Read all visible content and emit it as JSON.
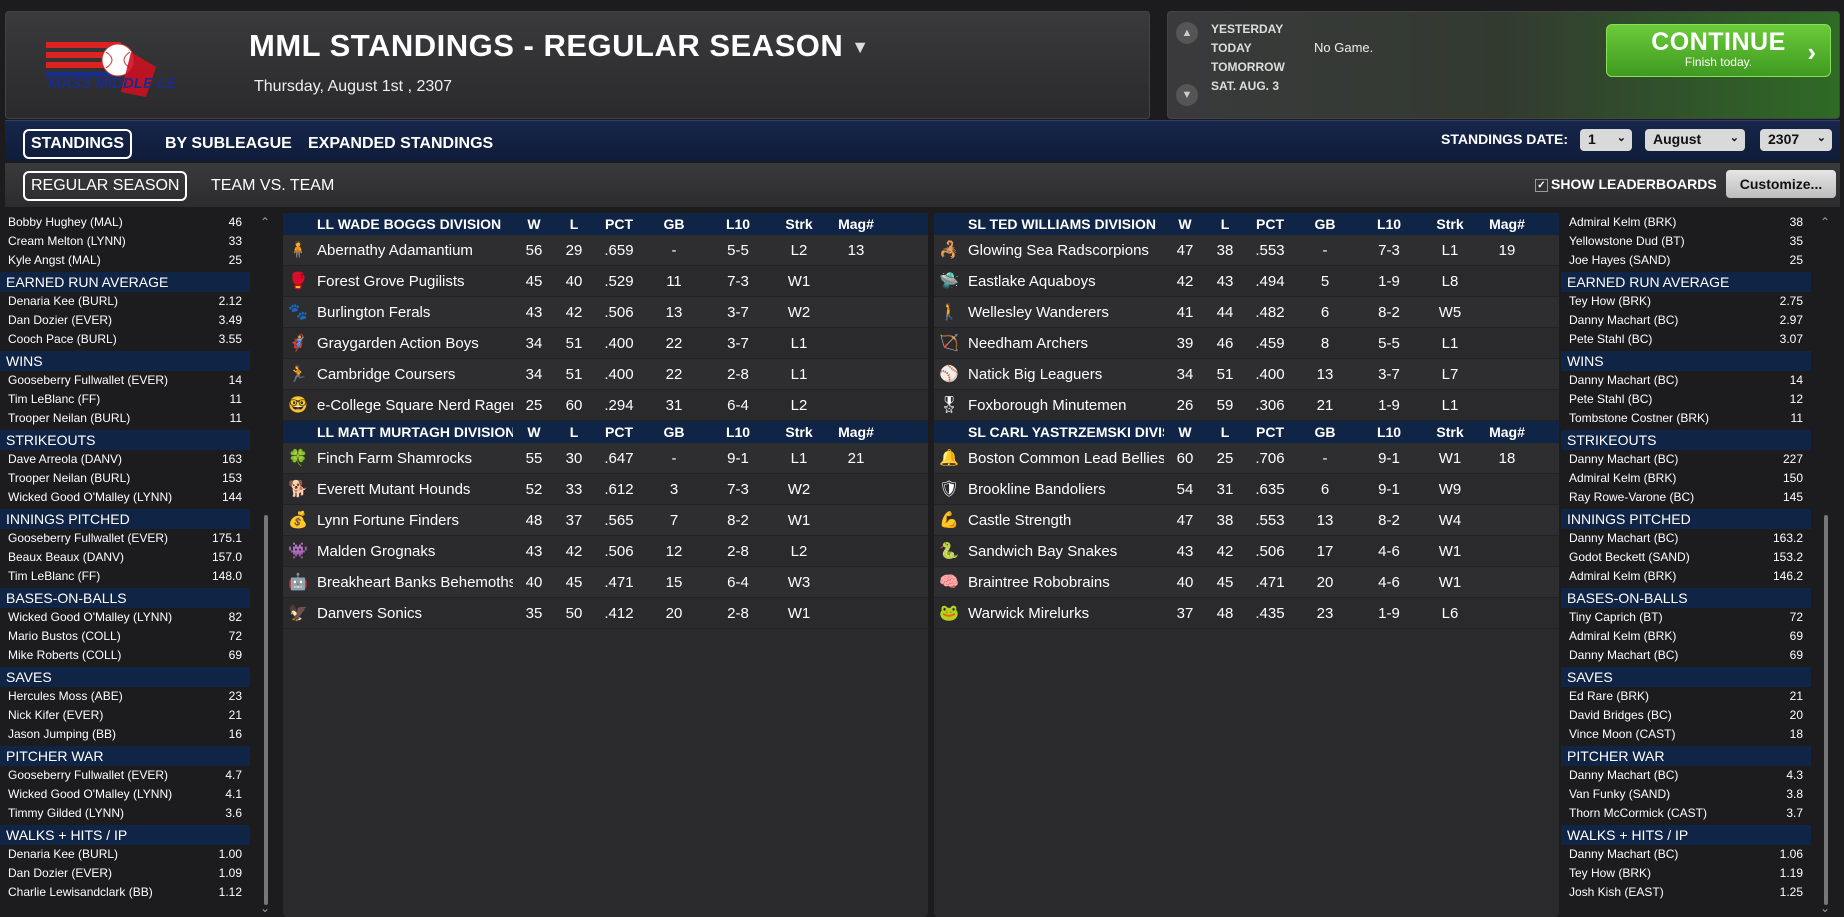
{
  "header": {
    "title": "MML STANDINGS - REGULAR SEASON",
    "date": "Thursday, August 1st , 2307",
    "logo_text": "MASS MIDDLE LEAGUE"
  },
  "date_nav": {
    "yesterday": "YESTERDAY",
    "today": "TODAY",
    "tomorrow": "TOMORROW",
    "next": "SAT. AUG. 3",
    "status": "No Game.",
    "continue_label": "CONTINUE",
    "continue_sub": "Finish today."
  },
  "tabs": {
    "primary": [
      "STANDINGS",
      "BY SUBLEAGUE",
      "EXPANDED STANDINGS"
    ],
    "secondary": [
      "REGULAR SEASON",
      "TEAM VS. TEAM"
    ],
    "standings_date_label": "STANDINGS DATE:",
    "day": "1",
    "month": "August",
    "year": "2307",
    "show_leaderboards": "SHOW LEADERBOARDS",
    "customize": "Customize..."
  },
  "columns": [
    "W",
    "L",
    "PCT",
    "GB",
    "L10",
    "Strk",
    "Mag#"
  ],
  "left_divisions": [
    {
      "name": "LL WADE BOGGS DIVISION",
      "teams": [
        {
          "icon": "🧍",
          "name": "Abernathy Adamantium",
          "w": "56",
          "l": "29",
          "pct": ".659",
          "gb": "-",
          "l10": "5-5",
          "strk": "L2",
          "mag": "13"
        },
        {
          "icon": "🥊",
          "name": "Forest Grove Pugilists",
          "w": "45",
          "l": "40",
          "pct": ".529",
          "gb": "11",
          "l10": "7-3",
          "strk": "W1",
          "mag": ""
        },
        {
          "icon": "🐾",
          "name": "Burlington Ferals",
          "w": "43",
          "l": "42",
          "pct": ".506",
          "gb": "13",
          "l10": "3-7",
          "strk": "W2",
          "mag": ""
        },
        {
          "icon": "🦸",
          "name": "Graygarden Action Boys",
          "w": "34",
          "l": "51",
          "pct": ".400",
          "gb": "22",
          "l10": "3-7",
          "strk": "L1",
          "mag": ""
        },
        {
          "icon": "🏃",
          "name": "Cambridge Coursers",
          "w": "34",
          "l": "51",
          "pct": ".400",
          "gb": "22",
          "l10": "2-8",
          "strk": "L1",
          "mag": ""
        },
        {
          "icon": "🤓",
          "name": "e-College Square Nerd Ragers",
          "w": "25",
          "l": "60",
          "pct": ".294",
          "gb": "31",
          "l10": "6-4",
          "strk": "L2",
          "mag": ""
        }
      ]
    },
    {
      "name": "LL MATT MURTAGH DIVISION",
      "teams": [
        {
          "icon": "🍀",
          "name": "Finch Farm Shamrocks",
          "w": "55",
          "l": "30",
          "pct": ".647",
          "gb": "-",
          "l10": "9-1",
          "strk": "L1",
          "mag": "21"
        },
        {
          "icon": "🐕",
          "name": "Everett Mutant Hounds",
          "w": "52",
          "l": "33",
          "pct": ".612",
          "gb": "3",
          "l10": "7-3",
          "strk": "W2",
          "mag": ""
        },
        {
          "icon": "💰",
          "name": "Lynn Fortune Finders",
          "w": "48",
          "l": "37",
          "pct": ".565",
          "gb": "7",
          "l10": "8-2",
          "strk": "W1",
          "mag": ""
        },
        {
          "icon": "👾",
          "name": "Malden Grognaks",
          "w": "43",
          "l": "42",
          "pct": ".506",
          "gb": "12",
          "l10": "2-8",
          "strk": "L2",
          "mag": ""
        },
        {
          "icon": "🤖",
          "name": "Breakheart Banks Behemoths",
          "w": "40",
          "l": "45",
          "pct": ".471",
          "gb": "15",
          "l10": "6-4",
          "strk": "W3",
          "mag": ""
        },
        {
          "icon": "🦅",
          "name": "Danvers Sonics",
          "w": "35",
          "l": "50",
          "pct": ".412",
          "gb": "20",
          "l10": "2-8",
          "strk": "W1",
          "mag": ""
        }
      ]
    }
  ],
  "right_divisions": [
    {
      "name": "SL TED WILLIAMS DIVISION",
      "teams": [
        {
          "icon": "🦂",
          "name": "Glowing Sea Radscorpions",
          "w": "47",
          "l": "38",
          "pct": ".553",
          "gb": "-",
          "l10": "7-3",
          "strk": "L1",
          "mag": "19"
        },
        {
          "icon": "🛸",
          "name": "Eastlake Aquaboys",
          "w": "42",
          "l": "43",
          "pct": ".494",
          "gb": "5",
          "l10": "1-9",
          "strk": "L8",
          "mag": ""
        },
        {
          "icon": "🚶",
          "name": "Wellesley Wanderers",
          "w": "41",
          "l": "44",
          "pct": ".482",
          "gb": "6",
          "l10": "8-2",
          "strk": "W5",
          "mag": ""
        },
        {
          "icon": "🏹",
          "name": "Needham Archers",
          "w": "39",
          "l": "46",
          "pct": ".459",
          "gb": "8",
          "l10": "5-5",
          "strk": "L1",
          "mag": ""
        },
        {
          "icon": "⚾",
          "name": "Natick Big Leaguers",
          "w": "34",
          "l": "51",
          "pct": ".400",
          "gb": "13",
          "l10": "3-7",
          "strk": "L7",
          "mag": ""
        },
        {
          "icon": "🎖",
          "name": "Foxborough Minutemen",
          "w": "26",
          "l": "59",
          "pct": ".306",
          "gb": "21",
          "l10": "1-9",
          "strk": "L1",
          "mag": ""
        }
      ]
    },
    {
      "name": "SL CARL YASTRZEMSKI DIVISION",
      "teams": [
        {
          "icon": "🔔",
          "name": "Boston Common Lead Bellies",
          "w": "60",
          "l": "25",
          "pct": ".706",
          "gb": "-",
          "l10": "9-1",
          "strk": "W1",
          "mag": "18"
        },
        {
          "icon": "🛡",
          "name": "Brookline Bandoliers",
          "w": "54",
          "l": "31",
          "pct": ".635",
          "gb": "6",
          "l10": "9-1",
          "strk": "W9",
          "mag": ""
        },
        {
          "icon": "💪",
          "name": "Castle Strength",
          "w": "47",
          "l": "38",
          "pct": ".553",
          "gb": "13",
          "l10": "8-2",
          "strk": "W4",
          "mag": ""
        },
        {
          "icon": "🐍",
          "name": "Sandwich Bay Snakes",
          "w": "43",
          "l": "42",
          "pct": ".506",
          "gb": "17",
          "l10": "4-6",
          "strk": "W1",
          "mag": ""
        },
        {
          "icon": "🧠",
          "name": "Braintree Robobrains",
          "w": "40",
          "l": "45",
          "pct": ".471",
          "gb": "20",
          "l10": "4-6",
          "strk": "W1",
          "mag": ""
        },
        {
          "icon": "🐸",
          "name": "Warwick Mirelurks",
          "w": "37",
          "l": "48",
          "pct": ".435",
          "gb": "23",
          "l10": "1-9",
          "strk": "L6",
          "mag": ""
        }
      ]
    }
  ],
  "left_leaders": [
    {
      "category": "",
      "rows": [
        [
          "Bobby Hughey (MAL)",
          "46"
        ],
        [
          "Cream Melton (LYNN)",
          "33"
        ],
        [
          "Kyle Angst (MAL)",
          "25"
        ]
      ]
    },
    {
      "category": "EARNED RUN AVERAGE",
      "rows": [
        [
          "Denaria Kee (BURL)",
          "2.12"
        ],
        [
          "Dan Dozier (EVER)",
          "3.49"
        ],
        [
          "Cooch Pace (BURL)",
          "3.55"
        ]
      ]
    },
    {
      "category": "WINS",
      "rows": [
        [
          "Gooseberry Fullwallet (EVER)",
          "14"
        ],
        [
          "Tim LeBlanc (FF)",
          "11"
        ],
        [
          "Trooper Neilan (BURL)",
          "11"
        ]
      ]
    },
    {
      "category": "STRIKEOUTS",
      "rows": [
        [
          "Dave Arreola (DANV)",
          "163"
        ],
        [
          "Trooper Neilan (BURL)",
          "153"
        ],
        [
          "Wicked Good O'Malley (LYNN)",
          "144"
        ]
      ]
    },
    {
      "category": "INNINGS PITCHED",
      "rows": [
        [
          "Gooseberry Fullwallet (EVER)",
          "175.1"
        ],
        [
          "Beaux Beaux (DANV)",
          "157.0"
        ],
        [
          "Tim LeBlanc (FF)",
          "148.0"
        ]
      ]
    },
    {
      "category": "BASES-ON-BALLS",
      "rows": [
        [
          "Wicked Good O'Malley (LYNN)",
          "82"
        ],
        [
          "Mario Bustos (COLL)",
          "72"
        ],
        [
          "Mike Roberts (COLL)",
          "69"
        ]
      ]
    },
    {
      "category": "SAVES",
      "rows": [
        [
          "Hercules Moss (ABE)",
          "23"
        ],
        [
          "Nick Kifer (EVER)",
          "21"
        ],
        [
          "Jason Jumping (BB)",
          "16"
        ]
      ]
    },
    {
      "category": "PITCHER WAR",
      "rows": [
        [
          "Gooseberry Fullwallet (EVER)",
          "4.7"
        ],
        [
          "Wicked Good O'Malley (LYNN)",
          "4.1"
        ],
        [
          "Timmy Gilded (LYNN)",
          "3.6"
        ]
      ]
    },
    {
      "category": "WALKS + HITS / IP",
      "rows": [
        [
          "Denaria Kee (BURL)",
          "1.00"
        ],
        [
          "Dan Dozier (EVER)",
          "1.09"
        ],
        [
          "Charlie Lewisandclark (BB)",
          "1.12"
        ]
      ]
    }
  ],
  "right_leaders": [
    {
      "category": "",
      "rows": [
        [
          "Admiral Kelm (BRK)",
          "38"
        ],
        [
          "Yellowstone Dud (BT)",
          "35"
        ],
        [
          "Joe Hayes (SAND)",
          "25"
        ]
      ]
    },
    {
      "category": "EARNED RUN AVERAGE",
      "rows": [
        [
          "Tey How (BRK)",
          "2.75"
        ],
        [
          "Danny Machart (BC)",
          "2.97"
        ],
        [
          "Pete Stahl (BC)",
          "3.07"
        ]
      ]
    },
    {
      "category": "WINS",
      "rows": [
        [
          "Danny Machart (BC)",
          "14"
        ],
        [
          "Pete Stahl (BC)",
          "12"
        ],
        [
          "Tombstone Costner (BRK)",
          "11"
        ]
      ]
    },
    {
      "category": "STRIKEOUTS",
      "rows": [
        [
          "Danny Machart (BC)",
          "227"
        ],
        [
          "Admiral Kelm (BRK)",
          "150"
        ],
        [
          "Ray Rowe-Varone (BC)",
          "145"
        ]
      ]
    },
    {
      "category": "INNINGS PITCHED",
      "rows": [
        [
          "Danny Machart (BC)",
          "163.2"
        ],
        [
          "Godot Beckett (SAND)",
          "153.2"
        ],
        [
          "Admiral Kelm (BRK)",
          "146.2"
        ]
      ]
    },
    {
      "category": "BASES-ON-BALLS",
      "rows": [
        [
          "Tiny Caprich (BT)",
          "72"
        ],
        [
          "Admiral Kelm (BRK)",
          "69"
        ],
        [
          "Danny Machart (BC)",
          "69"
        ]
      ]
    },
    {
      "category": "SAVES",
      "rows": [
        [
          "Ed Rare (BRK)",
          "21"
        ],
        [
          "David Bridges (BC)",
          "20"
        ],
        [
          "Vince Moon (CAST)",
          "18"
        ]
      ]
    },
    {
      "category": "PITCHER WAR",
      "rows": [
        [
          "Danny Machart (BC)",
          "4.3"
        ],
        [
          "Van Funky (SAND)",
          "3.8"
        ],
        [
          "Thorn McCormick (CAST)",
          "3.7"
        ]
      ]
    },
    {
      "category": "WALKS + HITS / IP",
      "rows": [
        [
          "Danny Machart (BC)",
          "1.06"
        ],
        [
          "Tey How (BRK)",
          "1.19"
        ],
        [
          "Josh Kish (EAST)",
          "1.25"
        ]
      ]
    }
  ]
}
